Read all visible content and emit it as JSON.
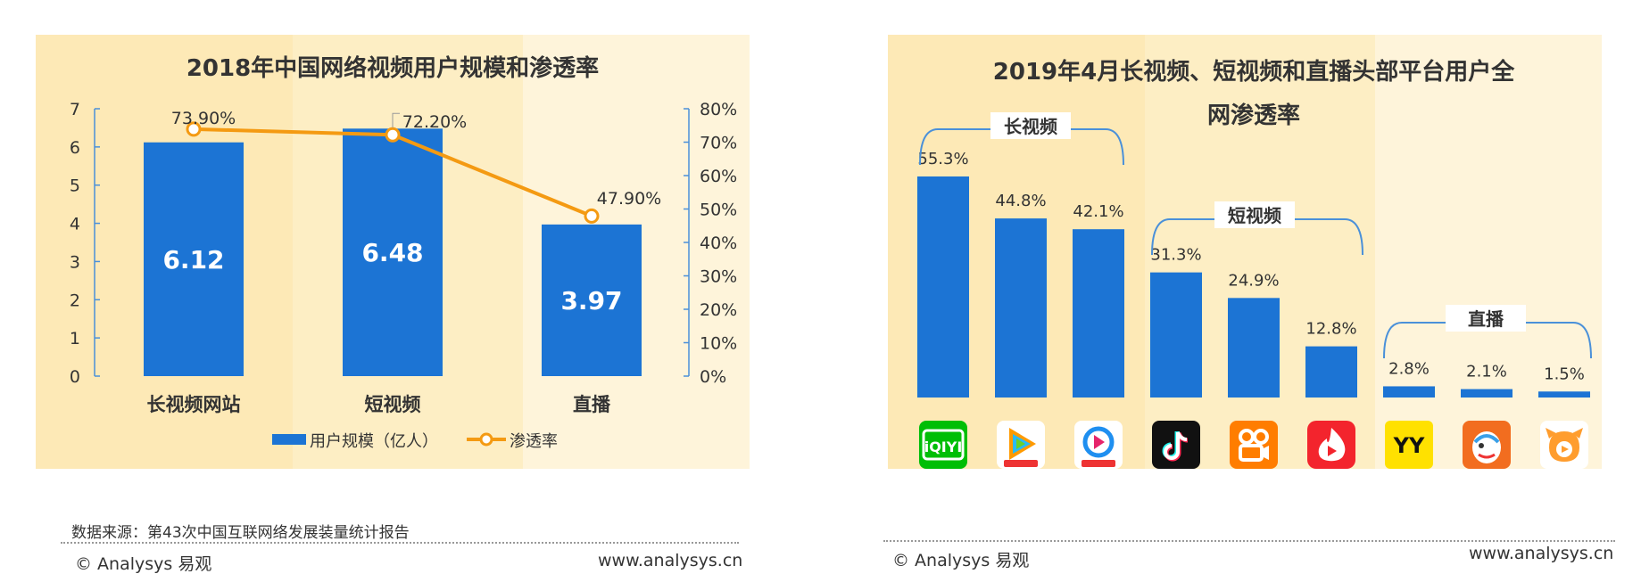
{
  "chart_data": [
    {
      "type": "bar",
      "title": "2018年中国网络视频用户规模和渗透率",
      "categories": [
        "长视频网站",
        "短视频",
        "直播"
      ],
      "series": [
        {
          "name": "用户规模（亿人）",
          "type": "bar",
          "values": [
            6.12,
            6.48,
            3.97
          ],
          "labels": [
            "6.12",
            "6.48",
            "3.97"
          ],
          "color": "#1c74d4"
        },
        {
          "name": "渗透率",
          "type": "line",
          "values": [
            73.9,
            72.2,
            47.9
          ],
          "labels": [
            "73.90%",
            "72.20%",
            "47.90%"
          ],
          "color": "#f49a12",
          "axis": "right"
        }
      ],
      "ylim": [
        0,
        7
      ],
      "y_ticks": [
        "0",
        "1",
        "2",
        "3",
        "4",
        "5",
        "6",
        "7"
      ],
      "y2lim": [
        0,
        80
      ],
      "y2_ticks": [
        "0%",
        "10%",
        "20%",
        "30%",
        "40%",
        "50%",
        "60%",
        "70%",
        "80%"
      ],
      "legend_position": "bottom",
      "grid": false
    },
    {
      "type": "bar",
      "title": "2019年4月长视频、短视频和直播头部平台用户全网渗透率",
      "title_lines": [
        "2019年4月长视频、短视频和直播头部平台用户全",
        "网渗透率"
      ],
      "values": [
        55.3,
        44.8,
        42.1,
        31.3,
        24.9,
        12.8,
        2.8,
        2.1,
        1.5
      ],
      "labels": [
        "55.3%",
        "44.8%",
        "42.1%",
        "31.3%",
        "24.9%",
        "12.8%",
        "2.8%",
        "2.1%",
        "1.5%"
      ],
      "groups": [
        {
          "label": "长视频",
          "bars": [
            0,
            1,
            2
          ]
        },
        {
          "label": "短视频",
          "bars": [
            3,
            4,
            5
          ]
        },
        {
          "label": "直播",
          "bars": [
            6,
            7,
            8
          ]
        }
      ],
      "icons": [
        "iqiyi-icon",
        "tencent-video-icon",
        "youku-icon",
        "douyin-icon",
        "kuaishou-icon",
        "huoshan-icon",
        "yy-icon",
        "huya-icon",
        "douyu-icon"
      ],
      "color": "#1c74d4",
      "ylim": [
        0,
        60
      ],
      "grid": false
    }
  ],
  "colors": {
    "bar": "#1c74d4",
    "line": "#f49a12",
    "panel_bg_dark": "#fde9b6",
    "panel_bg_light": "#fef4da"
  },
  "source_text": "数据来源：第43次中国互联网络发展装量统计报告",
  "copyright_left": "© Analysys 易观",
  "site_left": "www.analysys.cn",
  "copyright_right": "© Analysys 易观",
  "site_right": "www.analysys.cn",
  "icons_text": {
    "iqiyi": "iQIYI",
    "yy": "YY"
  }
}
